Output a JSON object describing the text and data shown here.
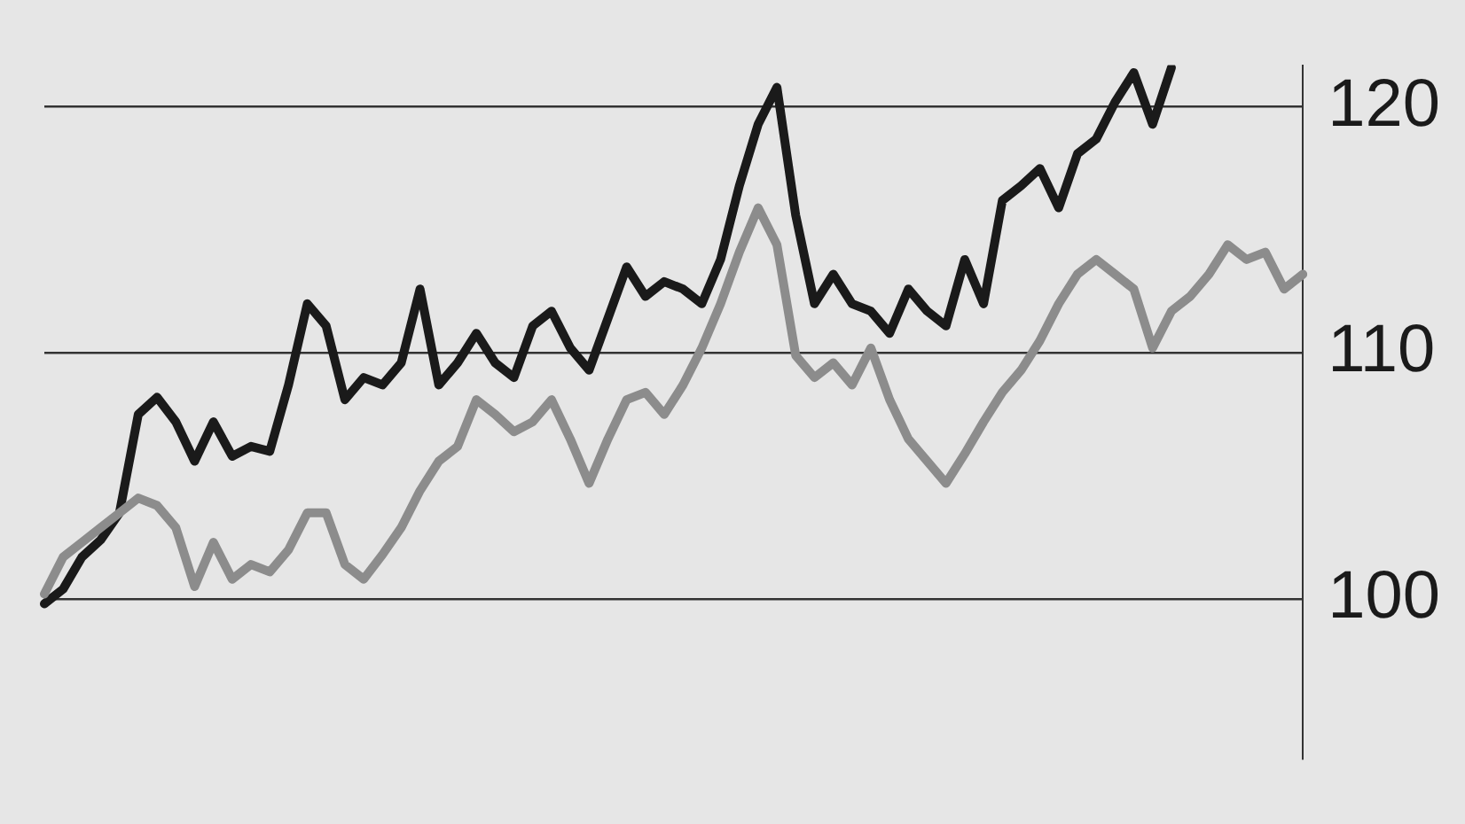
{
  "chart_data": {
    "type": "line",
    "categories": [
      null,
      null,
      null,
      null,
      null,
      null,
      null,
      null,
      null,
      null,
      null,
      null,
      null,
      null,
      null,
      null,
      null,
      null,
      null,
      null,
      null,
      null,
      null,
      null,
      null,
      null,
      null,
      null,
      null,
      null,
      null,
      null,
      null,
      null,
      null,
      null,
      null,
      null,
      null,
      null,
      null,
      null,
      null,
      null,
      null,
      null,
      null,
      null,
      null,
      null,
      null,
      null,
      null,
      null,
      null,
      null,
      null,
      null,
      null,
      null,
      null,
      null,
      null,
      null,
      null,
      null,
      null,
      null
    ],
    "series": [
      {
        "color": "#8c8c8c",
        "values": [
          100.2,
          101.7,
          102.3,
          102.9,
          103.5,
          104.1,
          103.8,
          102.9,
          100.5,
          102.3,
          100.8,
          101.4,
          101.1,
          102.0,
          103.5,
          103.5,
          101.4,
          100.8,
          101.8,
          102.9,
          104.4,
          105.6,
          106.2,
          108.1,
          107.5,
          106.8,
          107.2,
          108.1,
          106.5,
          104.7,
          106.5,
          108.1,
          108.4,
          107.5,
          108.7,
          110.2,
          112.0,
          114.1,
          115.9,
          114.4,
          109.9,
          109.0,
          109.6,
          108.7,
          110.2,
          108.1,
          106.5,
          105.6,
          104.7,
          105.9,
          107.2,
          108.4,
          109.3,
          110.5,
          112.0,
          113.2,
          113.8,
          113.2,
          112.6,
          110.2,
          111.7,
          112.3,
          113.2,
          114.4,
          113.8,
          114.1,
          112.6,
          113.2
        ]
      },
      {
        "color": "#1a1a1a",
        "values": [
          99.8,
          100.4,
          101.7,
          102.4,
          103.5,
          107.5,
          108.2,
          107.2,
          105.6,
          107.2,
          105.8,
          106.2,
          106.0,
          108.7,
          112.0,
          111.1,
          108.1,
          109.0,
          108.7,
          109.6,
          112.6,
          108.7,
          109.6,
          110.8,
          109.6,
          109.0,
          111.1,
          111.7,
          110.2,
          109.3,
          111.4,
          113.5,
          112.3,
          112.9,
          112.6,
          112.0,
          113.8,
          116.8,
          119.3,
          120.8,
          115.6,
          112.0,
          113.2,
          112.0,
          111.7,
          110.8,
          112.6,
          111.7,
          111.1,
          113.8,
          112.0,
          116.2,
          116.8,
          117.5,
          115.9,
          118.1,
          118.7,
          120.2,
          121.4,
          119.3,
          121.6,
          null,
          null,
          null,
          null,
          null,
          null,
          null
        ]
      }
    ],
    "ylim": [
      93.5,
      121.7
    ],
    "yticks": [
      100,
      110,
      120
    ],
    "grid": "y",
    "legend": false,
    "tick_labels": "y",
    "marker": "none",
    "line_style": "solid"
  }
}
